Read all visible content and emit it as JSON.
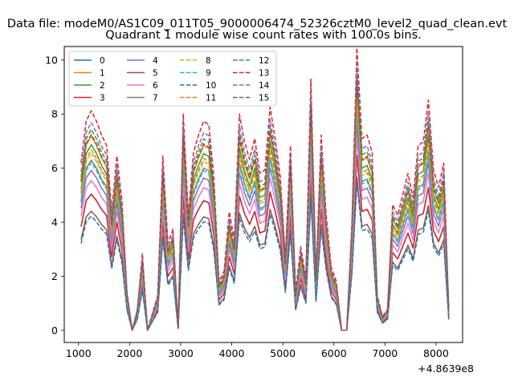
{
  "figure": {
    "suptitle": "Data file: modeM0/AS1C09_011T05_9000006474_52326cztM0_level2_quad_clean.evt",
    "x_offset_label": "+4.8639e8"
  },
  "chart_data": {
    "type": "line",
    "title": "Quadrant 1 module wise count rates with 100.0s bins.",
    "xlabel": "",
    "ylabel": "",
    "xlim": [
      720,
      8520
    ],
    "ylim": [
      -0.45,
      10.5
    ],
    "xticks": [
      1000,
      2000,
      3000,
      4000,
      5000,
      6000,
      7000,
      8000
    ],
    "yticks": [
      0,
      2,
      4,
      6,
      8,
      10
    ],
    "legend_position": "upper-left",
    "legend_columns": 4,
    "x": [
      1050,
      1150,
      1250,
      1350,
      1450,
      1550,
      1650,
      1750,
      1850,
      1950,
      2050,
      2150,
      2250,
      2350,
      2450,
      2550,
      2650,
      2750,
      2850,
      2950,
      3050,
      3150,
      3250,
      3350,
      3450,
      3550,
      3650,
      3750,
      3850,
      3950,
      4050,
      4150,
      4250,
      4350,
      4450,
      4550,
      4650,
      4750,
      4850,
      4950,
      5050,
      5150,
      5250,
      5350,
      5450,
      5550,
      5650,
      5750,
      5850,
      5950,
      6050,
      6150,
      6250,
      6350,
      6450,
      6550,
      6650,
      6750,
      6850,
      6950,
      7050,
      7150,
      7250,
      7350,
      7450,
      7550,
      7650,
      7750,
      7850,
      7950,
      8050,
      8150,
      8250
    ],
    "base_profile": [
      4.8,
      6.0,
      6.3,
      6.0,
      5.6,
      5.3,
      3.4,
      5.0,
      3.7,
      1.1,
      0.0,
      0.6,
      2.2,
      0.0,
      0.5,
      1.0,
      5.0,
      2.5,
      2.9,
      0.1,
      6.2,
      3.3,
      5.1,
      5.6,
      6.0,
      5.9,
      4.4,
      1.4,
      1.7,
      3.4,
      2.6,
      6.2,
      5.4,
      4.9,
      5.5,
      4.5,
      4.6,
      6.4,
      5.5,
      4.4,
      2.1,
      5.3,
      1.1,
      2.4,
      1.5,
      7.2,
      1.6,
      5.6,
      3.3,
      1.8,
      1.4,
      0.0,
      0.0,
      3.0,
      8.1,
      5.5,
      5.6,
      5.1,
      1.0,
      0.4,
      0.6,
      3.6,
      3.3,
      3.9,
      4.5,
      3.8,
      5.3,
      5.4,
      6.6,
      4.6,
      4.1,
      4.8,
      0.6
    ],
    "series": [
      {
        "name": "0",
        "color": "#1f77b4",
        "dashed": false,
        "scale": 0.8
      },
      {
        "name": "1",
        "color": "#ff7f0e",
        "dashed": false,
        "scale": 1.14
      },
      {
        "name": "2",
        "color": "#2ca02c",
        "dashed": false,
        "scale": 1.09
      },
      {
        "name": "3",
        "color": "#d62728",
        "dashed": false,
        "scale": 0.8
      },
      {
        "name": "4",
        "color": "#9467bd",
        "dashed": false,
        "scale": 0.94
      },
      {
        "name": "5",
        "color": "#8c564b",
        "dashed": false,
        "scale": 0.7
      },
      {
        "name": "6",
        "color": "#e377c2",
        "dashed": false,
        "scale": 0.88
      },
      {
        "name": "7",
        "color": "#7f7f7f",
        "dashed": false,
        "scale": 1.0
      },
      {
        "name": "8",
        "color": "#bcbd22",
        "dashed": true,
        "scale": 1.04
      },
      {
        "name": "9",
        "color": "#17becf",
        "dashed": true,
        "scale": 0.985
      },
      {
        "name": "10",
        "color": "#1f77b4",
        "dashed": true,
        "scale": 0.67
      },
      {
        "name": "11",
        "color": "#ff7f0e",
        "dashed": true,
        "scale": 1.06
      },
      {
        "name": "12",
        "color": "#2ca02c",
        "dashed": true,
        "scale": 1.18
      },
      {
        "name": "13",
        "color": "#d62728",
        "dashed": true,
        "scale": 1.29
      },
      {
        "name": "14",
        "color": "#9467bd",
        "dashed": true,
        "scale": 1.22
      },
      {
        "name": "15",
        "color": "#8c564b",
        "dashed": true,
        "scale": 1.15
      }
    ]
  }
}
